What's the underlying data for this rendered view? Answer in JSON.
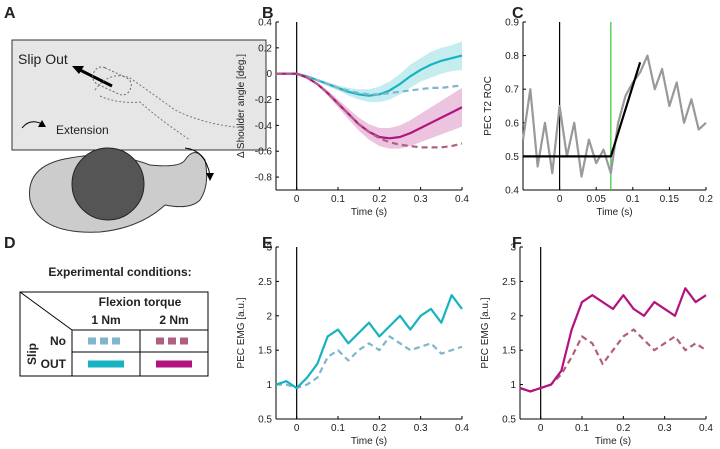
{
  "panel_a": {
    "label": "A",
    "title": "Slip Out",
    "arrow_label": "Extension"
  },
  "panel_d": {
    "label": "D",
    "title": "Experimental conditions:",
    "column_header": "Flexion torque",
    "columns": [
      "1 Nm",
      "2 Nm"
    ],
    "row_header": "Slip",
    "rows": [
      "No",
      "OUT"
    ]
  },
  "chart_data": [
    {
      "type": "line",
      "panel": "B",
      "xlabel": "Time (s)",
      "ylabel": "Δ Shoulder angle [deg.]",
      "xlim": [
        -0.05,
        0.4
      ],
      "ylim": [
        -0.9,
        0.4
      ],
      "xticks": [
        0,
        0.1,
        0.2,
        0.3,
        0.4
      ],
      "yticks": [
        0.4,
        0.2,
        0,
        -0.2,
        -0.4,
        -0.6,
        -0.8
      ],
      "vlines": [
        {
          "x": 0,
          "color": "#000000"
        }
      ],
      "series": [
        {
          "color": "#17b3c1",
          "dash": false,
          "x": [
            -0.05,
            -0.025,
            0,
            0.025,
            0.05,
            0.075,
            0.1,
            0.125,
            0.15,
            0.175,
            0.2,
            0.225,
            0.25,
            0.275,
            0.3,
            0.325,
            0.35,
            0.375,
            0.4
          ],
          "values": [
            0,
            0,
            0,
            -0.02,
            -0.05,
            -0.08,
            -0.11,
            -0.14,
            -0.16,
            -0.17,
            -0.16,
            -0.13,
            -0.08,
            -0.02,
            0.03,
            0.07,
            0.1,
            0.12,
            0.14
          ],
          "error": [
            0,
            0,
            0,
            0.005,
            0.01,
            0.015,
            0.02,
            0.03,
            0.04,
            0.05,
            0.06,
            0.07,
            0.08,
            0.09,
            0.09,
            0.1,
            0.1,
            0.1,
            0.11
          ]
        },
        {
          "color": "#7fb6cc",
          "dash": true,
          "x": [
            -0.05,
            -0.025,
            0,
            0.025,
            0.05,
            0.075,
            0.1,
            0.125,
            0.15,
            0.175,
            0.2,
            0.225,
            0.25,
            0.275,
            0.3,
            0.325,
            0.35,
            0.375,
            0.4
          ],
          "values": [
            0,
            0,
            0,
            -0.02,
            -0.05,
            -0.08,
            -0.11,
            -0.13,
            -0.15,
            -0.16,
            -0.16,
            -0.15,
            -0.14,
            -0.13,
            -0.12,
            -0.11,
            -0.11,
            -0.1,
            -0.09
          ]
        },
        {
          "color": "#b3137f",
          "dash": false,
          "x": [
            -0.05,
            -0.025,
            0,
            0.025,
            0.05,
            0.075,
            0.1,
            0.125,
            0.15,
            0.175,
            0.2,
            0.225,
            0.25,
            0.275,
            0.3,
            0.325,
            0.35,
            0.375,
            0.4
          ],
          "values": [
            0,
            0,
            0,
            -0.03,
            -0.08,
            -0.15,
            -0.23,
            -0.31,
            -0.39,
            -0.45,
            -0.49,
            -0.5,
            -0.49,
            -0.46,
            -0.42,
            -0.38,
            -0.34,
            -0.3,
            -0.26
          ],
          "error": [
            0,
            0,
            0,
            0.005,
            0.01,
            0.02,
            0.03,
            0.04,
            0.05,
            0.06,
            0.07,
            0.08,
            0.09,
            0.1,
            0.11,
            0.12,
            0.13,
            0.14,
            0.15
          ]
        },
        {
          "color": "#b05f83",
          "dash": true,
          "x": [
            -0.05,
            -0.025,
            0,
            0.025,
            0.05,
            0.075,
            0.1,
            0.125,
            0.15,
            0.175,
            0.2,
            0.225,
            0.25,
            0.275,
            0.3,
            0.325,
            0.35,
            0.375,
            0.4
          ],
          "values": [
            0,
            0,
            0,
            -0.03,
            -0.08,
            -0.15,
            -0.23,
            -0.31,
            -0.39,
            -0.45,
            -0.5,
            -0.53,
            -0.55,
            -0.56,
            -0.57,
            -0.57,
            -0.57,
            -0.56,
            -0.54
          ]
        }
      ]
    },
    {
      "type": "line",
      "panel": "C",
      "xlabel": "Time (s)",
      "ylabel": "PEC T2 ROC",
      "xlim": [
        -0.05,
        0.2
      ],
      "ylim": [
        0.4,
        0.9
      ],
      "xticks": [
        0,
        0.05,
        0.1,
        0.15,
        0.2
      ],
      "yticks": [
        0.4,
        0.5,
        0.6,
        0.7,
        0.8,
        0.9
      ],
      "vlines": [
        {
          "x": 0,
          "color": "#000000"
        },
        {
          "x": 0.07,
          "color": "#33cc33"
        }
      ],
      "series": [
        {
          "color": "#999999",
          "dash": false,
          "x": [
            -0.05,
            -0.04,
            -0.03,
            -0.02,
            -0.01,
            0,
            0.01,
            0.02,
            0.03,
            0.04,
            0.05,
            0.06,
            0.07,
            0.08,
            0.09,
            0.1,
            0.11,
            0.12,
            0.13,
            0.14,
            0.15,
            0.16,
            0.17,
            0.18,
            0.19,
            0.2
          ],
          "values": [
            0.55,
            0.7,
            0.47,
            0.6,
            0.45,
            0.65,
            0.5,
            0.6,
            0.44,
            0.55,
            0.48,
            0.52,
            0.45,
            0.6,
            0.68,
            0.72,
            0.75,
            0.8,
            0.7,
            0.76,
            0.65,
            0.72,
            0.6,
            0.67,
            0.58,
            0.6
          ]
        },
        {
          "color": "#000000",
          "dash": false,
          "x": [
            -0.05,
            0.07,
            0.11
          ],
          "values": [
            0.5,
            0.5,
            0.78
          ]
        }
      ]
    },
    {
      "type": "line",
      "panel": "E",
      "xlabel": "Time (s)",
      "ylabel": "PEC EMG [a.u.]",
      "xlim": [
        -0.05,
        0.4
      ],
      "ylim": [
        0.5,
        3
      ],
      "xticks": [
        0,
        0.1,
        0.2,
        0.3,
        0.4
      ],
      "yticks": [
        0.5,
        1,
        1.5,
        2,
        2.5,
        3
      ],
      "vlines": [
        {
          "x": 0,
          "color": "#000000"
        }
      ],
      "series": [
        {
          "color": "#7fb6cc",
          "dash": true,
          "x": [
            -0.05,
            -0.025,
            0,
            0.025,
            0.05,
            0.075,
            0.1,
            0.125,
            0.15,
            0.175,
            0.2,
            0.225,
            0.25,
            0.275,
            0.3,
            0.325,
            0.35,
            0.375,
            0.4
          ],
          "values": [
            1.0,
            1.0,
            0.95,
            1.0,
            1.1,
            1.4,
            1.5,
            1.35,
            1.5,
            1.6,
            1.5,
            1.7,
            1.6,
            1.5,
            1.55,
            1.6,
            1.45,
            1.5,
            1.55
          ]
        },
        {
          "color": "#17b3c1",
          "dash": false,
          "x": [
            -0.05,
            -0.025,
            0,
            0.025,
            0.05,
            0.075,
            0.1,
            0.125,
            0.15,
            0.175,
            0.2,
            0.225,
            0.25,
            0.275,
            0.3,
            0.325,
            0.35,
            0.375,
            0.4
          ],
          "values": [
            1.0,
            1.05,
            0.95,
            1.1,
            1.3,
            1.7,
            1.8,
            1.6,
            1.75,
            1.9,
            1.7,
            1.85,
            2.0,
            1.8,
            2.0,
            2.1,
            1.9,
            2.3,
            2.1
          ]
        }
      ]
    },
    {
      "type": "line",
      "panel": "F",
      "xlabel": "Time (s)",
      "ylabel": "PEC EMG [a.u.]",
      "xlim": [
        -0.05,
        0.4
      ],
      "ylim": [
        0.5,
        3
      ],
      "xticks": [
        0,
        0.1,
        0.2,
        0.3,
        0.4
      ],
      "yticks": [
        0.5,
        1,
        1.5,
        2,
        2.5,
        3
      ],
      "vlines": [
        {
          "x": 0,
          "color": "#000000"
        }
      ],
      "series": [
        {
          "color": "#b05f83",
          "dash": true,
          "x": [
            -0.05,
            -0.025,
            0,
            0.025,
            0.05,
            0.075,
            0.1,
            0.125,
            0.15,
            0.175,
            0.2,
            0.225,
            0.25,
            0.275,
            0.3,
            0.325,
            0.35,
            0.375,
            0.4
          ],
          "values": [
            0.95,
            0.9,
            0.95,
            1.0,
            1.15,
            1.4,
            1.7,
            1.6,
            1.3,
            1.5,
            1.7,
            1.8,
            1.65,
            1.5,
            1.6,
            1.7,
            1.5,
            1.6,
            1.5
          ]
        },
        {
          "color": "#b3137f",
          "dash": false,
          "x": [
            -0.05,
            -0.025,
            0,
            0.025,
            0.05,
            0.075,
            0.1,
            0.125,
            0.15,
            0.175,
            0.2,
            0.225,
            0.25,
            0.275,
            0.3,
            0.325,
            0.35,
            0.375,
            0.4
          ],
          "values": [
            0.95,
            0.9,
            0.95,
            1.0,
            1.2,
            1.8,
            2.2,
            2.3,
            2.2,
            2.1,
            2.3,
            2.1,
            2.0,
            2.2,
            2.1,
            2.0,
            2.4,
            2.2,
            2.3
          ]
        }
      ]
    }
  ]
}
